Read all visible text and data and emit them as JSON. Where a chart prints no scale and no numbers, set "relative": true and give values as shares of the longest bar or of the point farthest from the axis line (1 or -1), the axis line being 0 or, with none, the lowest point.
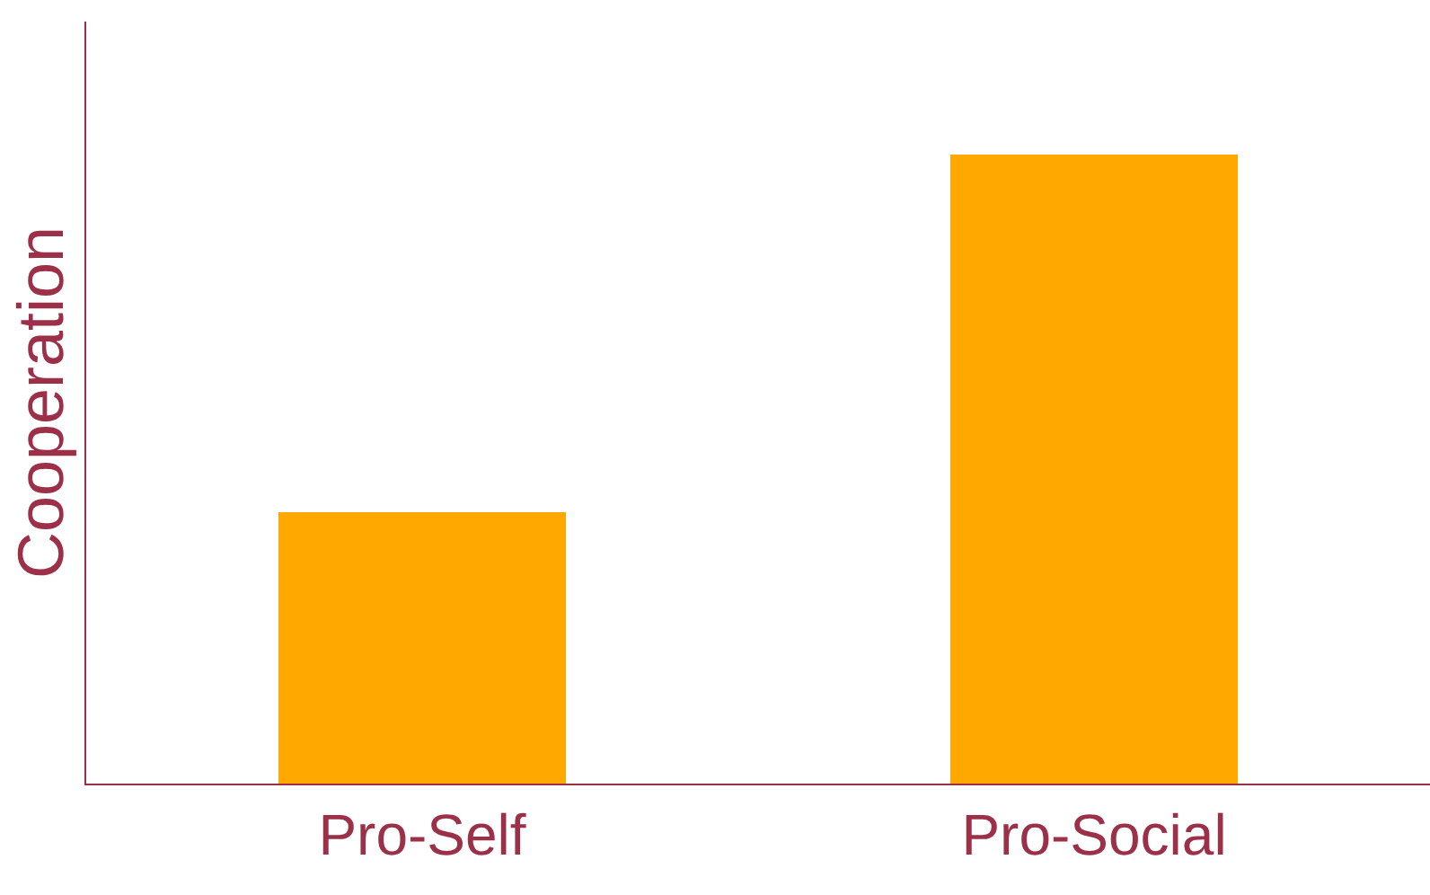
{
  "chart_data": {
    "type": "bar",
    "relative": true,
    "ylabel": "Cooperation",
    "categories": [
      "Pro-Self",
      "Pro-Social"
    ],
    "values": [
      0.43,
      1
    ],
    "color": "#ffa800"
  }
}
